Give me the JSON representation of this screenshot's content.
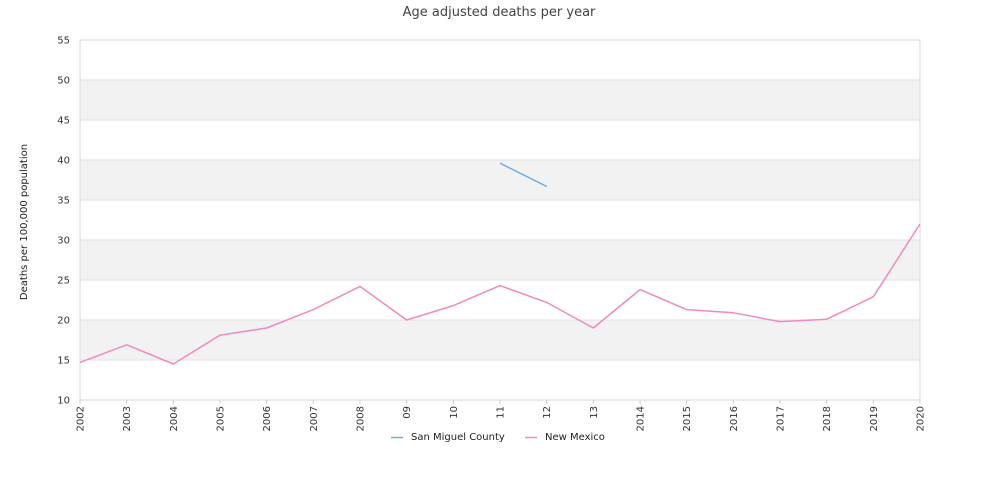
{
  "chart_data": {
    "type": "line",
    "title": "Age adjusted deaths per year",
    "xlabel": "",
    "ylabel": "Deaths per 100,000 population",
    "categories": [
      "2002",
      "2003",
      "2004",
      "2005",
      "2006",
      "2007",
      "2008",
      "09",
      "10",
      "11",
      "12",
      "13",
      "2014",
      "2015",
      "2016",
      "2017",
      "2018",
      "2019",
      "2020"
    ],
    "ylim": [
      10,
      55
    ],
    "yticks": [
      10,
      15,
      20,
      25,
      30,
      35,
      40,
      45,
      50,
      55
    ],
    "grid": "alternating horizontal bands",
    "legend_position": "bottom-center",
    "series": [
      {
        "name": "San Miguel County",
        "color": "#6aaee8",
        "values": [
          null,
          null,
          null,
          null,
          null,
          null,
          null,
          null,
          null,
          39.6,
          36.7,
          null,
          null,
          null,
          null,
          null,
          null,
          null,
          null
        ]
      },
      {
        "name": "New Mexico",
        "color": "#f08ac0",
        "values": [
          14.7,
          16.9,
          14.5,
          18.1,
          19.0,
          21.3,
          24.2,
          20.0,
          21.8,
          24.3,
          22.2,
          19.0,
          23.8,
          21.3,
          20.9,
          19.8,
          20.1,
          22.9,
          32.0
        ]
      }
    ]
  }
}
